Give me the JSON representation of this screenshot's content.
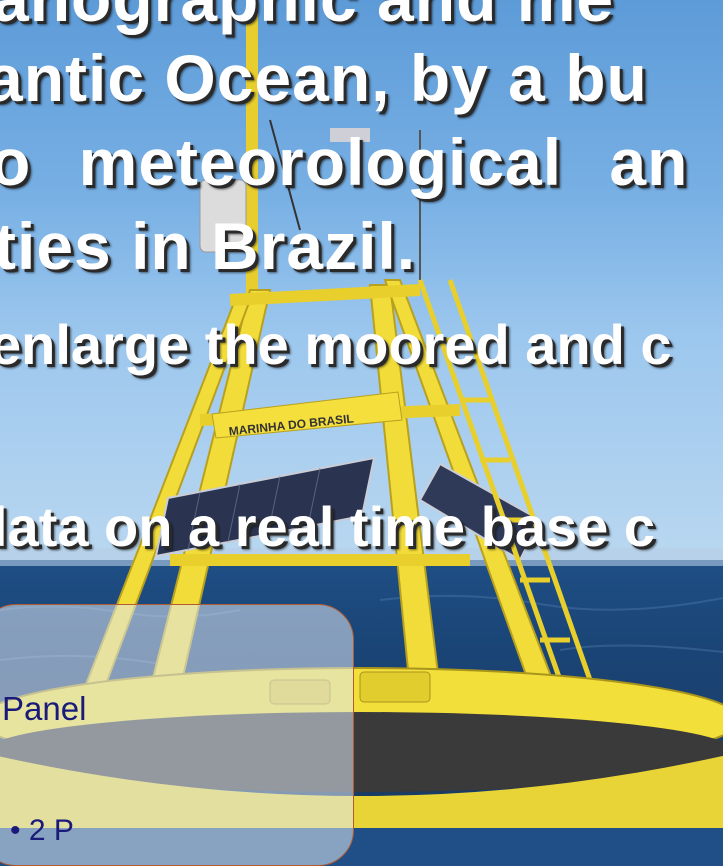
{
  "slide": {
    "lines": [
      "anographic and me",
      "antic Ocean, by a bu",
      "o meteorological an",
      "ties in Brazil.",
      "enlarge the moored and c",
      "lata on a real time base c"
    ]
  },
  "buoy": {
    "marking": "MARINHA DO BRASIL"
  },
  "panel": {
    "label": "Panel",
    "label_2": "• 2 P"
  },
  "colors": {
    "buoy_yellow": "#f2dc3a",
    "sea": "#1f4f86",
    "sky": "#78b0e4",
    "panel_border": "#b25c30",
    "panel_text": "#1a1a7a"
  }
}
